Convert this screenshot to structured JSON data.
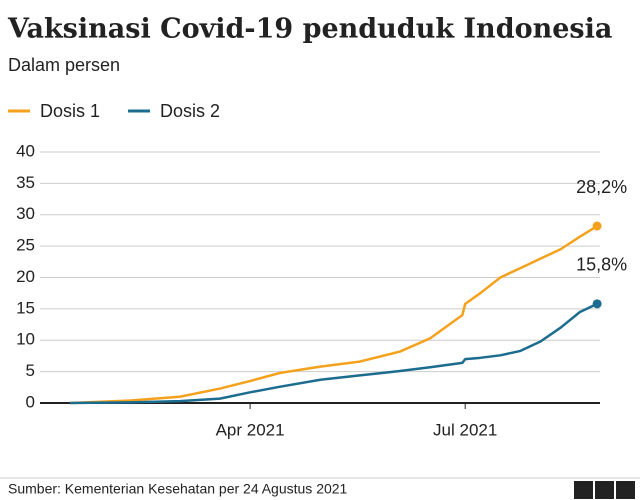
{
  "chart_data": {
    "type": "line",
    "title": "Vaksinasi Covid-19 penduduk Indonesia",
    "subtitle": "Dalam persen",
    "x": [
      1.49,
      2.33,
      3.02,
      3.58,
      4,
      4.42,
      4.98,
      5.53,
      6.09,
      6.51,
      6.96,
      7.0,
      7.21,
      7.49,
      7.77,
      8.05,
      8.33,
      8.6,
      8.84
    ],
    "series": [
      {
        "name": "Dosis 1",
        "color": "#f4a21d",
        "values": [
          0,
          0.4,
          1.0,
          2.3,
          3.5,
          4.8,
          5.8,
          6.6,
          8.2,
          10.3,
          14,
          15.8,
          17.5,
          20,
          21.5,
          23,
          24.5,
          26.5,
          28.2
        ],
        "value_labels": [
          null,
          null,
          null,
          null,
          null,
          null,
          null,
          null,
          null,
          null,
          null,
          null,
          null,
          null,
          null,
          null,
          null,
          null,
          "28,2%"
        ]
      },
      {
        "name": "Dosis 2",
        "color": "#1b6c8e",
        "values": [
          0,
          0.1,
          0.3,
          0.7,
          1.7,
          2.6,
          3.7,
          4.4,
          5.1,
          5.7,
          6.4,
          7.0,
          7.2,
          7.6,
          8.3,
          9.8,
          12,
          14.5,
          15.8
        ],
        "value_labels": [
          null,
          null,
          null,
          null,
          null,
          null,
          null,
          null,
          null,
          null,
          null,
          null,
          null,
          null,
          null,
          null,
          null,
          null,
          "15,8%"
        ]
      }
    ],
    "xlim": [
      1.07,
      8.88
    ],
    "xticks": [
      {
        "value": 4,
        "label": "Apr 2021"
      },
      {
        "value": 7,
        "label": "Jul 2021"
      }
    ],
    "ylim": [
      0,
      40
    ],
    "yticks": [
      0,
      5,
      10,
      15,
      20,
      25,
      30,
      35,
      40
    ],
    "grid": true,
    "source": "Sumber: Kementerian Kesehatan per 24 Agustus 2021",
    "logo": "BBC"
  }
}
